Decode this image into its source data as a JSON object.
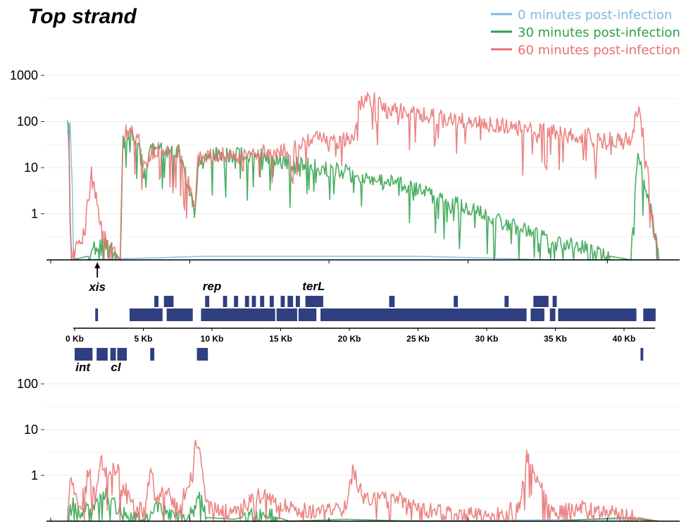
{
  "title": "Top strand",
  "legend": [
    {
      "label": "0 minutes post-infection",
      "color": "#7fb9df"
    },
    {
      "label": "30 minutes post-infection",
      "color": "#2ca048"
    },
    {
      "label": "60 minutes post-infection",
      "color": "#e8706f"
    }
  ],
  "chart_data": [
    {
      "type": "line",
      "scale": "log10",
      "ylim": [
        0.1,
        1000
      ],
      "yticks": [
        1,
        10,
        100,
        1000
      ],
      "ytick_labels": [
        "1",
        "10",
        "100",
        "1000"
      ],
      "xlim": [
        -1.5,
        44
      ],
      "x_unit": "Kb",
      "series": [
        {
          "name": "0 minutes post-infection",
          "color": "#7fb9df",
          "x": [
            0.0,
            0.1,
            0.2,
            0.5,
            6,
            10,
            20,
            25,
            30,
            35,
            42.5
          ],
          "y": [
            80,
            250,
            90,
            0.1,
            0.11,
            0.12,
            0.12,
            0.12,
            0.11,
            0.1,
            0.1
          ]
        },
        {
          "name": "30 minutes post-infection",
          "color": "#2ca048",
          "x": [
            0.0,
            0.1,
            0.2,
            0.3,
            1.5,
            2.5,
            3.8,
            4.0,
            4.5,
            5.2,
            5.5,
            6.0,
            8.0,
            9.2,
            9.4,
            10,
            12,
            13.5,
            15.0,
            16.0,
            17.0,
            18.0,
            19.0,
            20.0,
            21.0,
            23.0,
            25.0,
            27.0,
            29.0,
            31.0,
            33.0,
            35.0,
            37.0,
            39.0,
            40.5,
            41.0,
            41.5,
            42.0,
            42.5
          ],
          "y": [
            80,
            75,
            1,
            0.1,
            0.12,
            0.3,
            0.1,
            40,
            50,
            35,
            8,
            25,
            22,
            1,
            15,
            20,
            18,
            20,
            15,
            12,
            12,
            10,
            9,
            8,
            6,
            5,
            3.5,
            2,
            1.3,
            0.7,
            0.4,
            0.25,
            0.18,
            0.12,
            0.1,
            25,
            3,
            1,
            0.1
          ]
        },
        {
          "name": "60 minutes post-infection",
          "color": "#e8706f",
          "x": [
            0.0,
            0.1,
            0.2,
            0.3,
            1.0,
            1.8,
            2.0,
            2.5,
            3.8,
            4.0,
            4.5,
            5.2,
            5.5,
            6.0,
            8.0,
            9.2,
            9.4,
            10,
            12,
            13.5,
            15.0,
            16.0,
            17.0,
            18.0,
            19.0,
            20.5,
            21.0,
            22.0,
            23.0,
            25.0,
            27.0,
            29.0,
            31.0,
            33.0,
            35.0,
            37.0,
            39.0,
            40.5,
            41.0,
            41.5,
            42.0,
            42.5
          ],
          "y": [
            80,
            75,
            1,
            0.1,
            0.3,
            10,
            3,
            0.4,
            0.1,
            50,
            70,
            40,
            10,
            25,
            22,
            1.5,
            15,
            20,
            18,
            22,
            20,
            25,
            40,
            45,
            40,
            40,
            250,
            300,
            200,
            150,
            120,
            100,
            80,
            70,
            60,
            50,
            40,
            40,
            200,
            30,
            1,
            0.1
          ]
        }
      ]
    },
    {
      "type": "line",
      "scale": "log10",
      "ylim": [
        0.1,
        100
      ],
      "yticks": [
        1,
        10,
        100
      ],
      "ytick_labels": [
        "1",
        "10",
        "100"
      ],
      "xlim": [
        -1.5,
        44
      ],
      "x_unit": "Kb",
      "series": [
        {
          "name": "0 minutes post-infection",
          "color": "#7fb9df",
          "x": [
            0.0,
            0.1,
            0.3,
            6,
            20,
            41,
            42.5
          ],
          "y": [
            0.25,
            0.12,
            0.1,
            0.1,
            0.1,
            0.11,
            0.1
          ]
        },
        {
          "name": "30 minutes post-infection",
          "color": "#2ca048",
          "x": [
            0.0,
            0.2,
            1.0,
            2.0,
            2.5,
            3.0,
            4.0,
            5.0,
            6.5,
            8.0,
            9.0,
            9.5,
            10,
            12,
            14,
            16,
            20,
            25,
            30,
            35,
            40,
            42.5
          ],
          "y": [
            0.1,
            0.3,
            0.15,
            0.25,
            0.5,
            0.3,
            0.15,
            0.12,
            0.2,
            0.12,
            0.15,
            0.4,
            0.12,
            0.11,
            0.15,
            0.1,
            0.11,
            0.1,
            0.1,
            0.1,
            0.12,
            0.1
          ]
        },
        {
          "name": "60 minutes post-infection",
          "color": "#e8706f",
          "x": [
            0.0,
            0.2,
            1.0,
            1.5,
            2.0,
            2.4,
            3.0,
            3.5,
            4.5,
            5.5,
            6.0,
            6.5,
            7.0,
            8.0,
            9.0,
            9.2,
            9.5,
            10,
            12,
            14,
            16,
            18,
            20.0,
            20.5,
            21.5,
            23,
            25,
            27,
            29,
            31,
            32.5,
            33,
            35,
            37,
            39,
            41,
            42.5
          ],
          "y": [
            0.1,
            0.8,
            0.2,
            1.5,
            0.3,
            2.0,
            1.0,
            1.5,
            0.3,
            0.15,
            1.3,
            0.3,
            0.5,
            0.2,
            1.0,
            4.5,
            3.5,
            0.2,
            0.15,
            0.4,
            0.2,
            0.15,
            0.2,
            1.2,
            0.3,
            0.4,
            0.2,
            0.15,
            0.15,
            0.15,
            0.2,
            2.5,
            0.15,
            0.2,
            0.15,
            0.12,
            0.1
          ]
        }
      ]
    }
  ],
  "genome_axis": {
    "ticks": [
      0,
      5,
      10,
      15,
      20,
      25,
      30,
      35,
      40
    ],
    "tick_labels": [
      "0 Kb",
      "5 Kb",
      "10 Kb",
      "15 Kb",
      "20 Kb",
      "25 Kb",
      "30 Kb",
      "35 Kb",
      "40 Kb"
    ],
    "genes_top_row": [
      [
        5.8,
        6.1
      ],
      [
        6.5,
        7.2
      ],
      [
        9.5,
        9.8
      ],
      [
        10.8,
        11.1
      ],
      [
        11.6,
        11.9
      ],
      [
        12.4,
        12.7
      ],
      [
        12.9,
        13.2
      ],
      [
        13.5,
        13.8
      ],
      [
        14.2,
        14.5
      ],
      [
        15.0,
        15.3
      ],
      [
        15.5,
        15.9
      ],
      [
        16.1,
        16.4
      ],
      [
        16.8,
        18.1
      ],
      [
        22.9,
        23.3
      ],
      [
        27.6,
        27.9
      ],
      [
        31.3,
        31.6
      ],
      [
        33.4,
        34.5
      ],
      [
        34.8,
        35.1
      ]
    ],
    "genes_mid_row": [
      [
        1.5,
        1.7
      ],
      [
        4.0,
        6.4
      ],
      [
        6.7,
        8.6
      ],
      [
        9.2,
        14.6
      ],
      [
        14.7,
        16.2
      ],
      [
        16.3,
        17.6
      ],
      [
        17.9,
        32.9
      ],
      [
        33.2,
        34.2
      ],
      [
        34.6,
        35.0
      ],
      [
        35.2,
        40.9
      ],
      [
        41.4,
        42.3
      ]
    ],
    "genes_bottom_row": [
      [
        0.0,
        1.3
      ],
      [
        1.6,
        2.4
      ],
      [
        2.6,
        3.0
      ],
      [
        3.1,
        3.8
      ],
      [
        5.5,
        5.8
      ],
      [
        8.9,
        9.7
      ],
      [
        41.2,
        41.4
      ]
    ],
    "gene_labels": [
      {
        "text": "xis",
        "x": 1.65
      },
      {
        "text": "rep",
        "x": 10.0
      },
      {
        "text": "terL",
        "x": 17.4
      },
      {
        "text": "int",
        "x": 0.6
      },
      {
        "text": "cl",
        "x": 3.0
      }
    ]
  }
}
